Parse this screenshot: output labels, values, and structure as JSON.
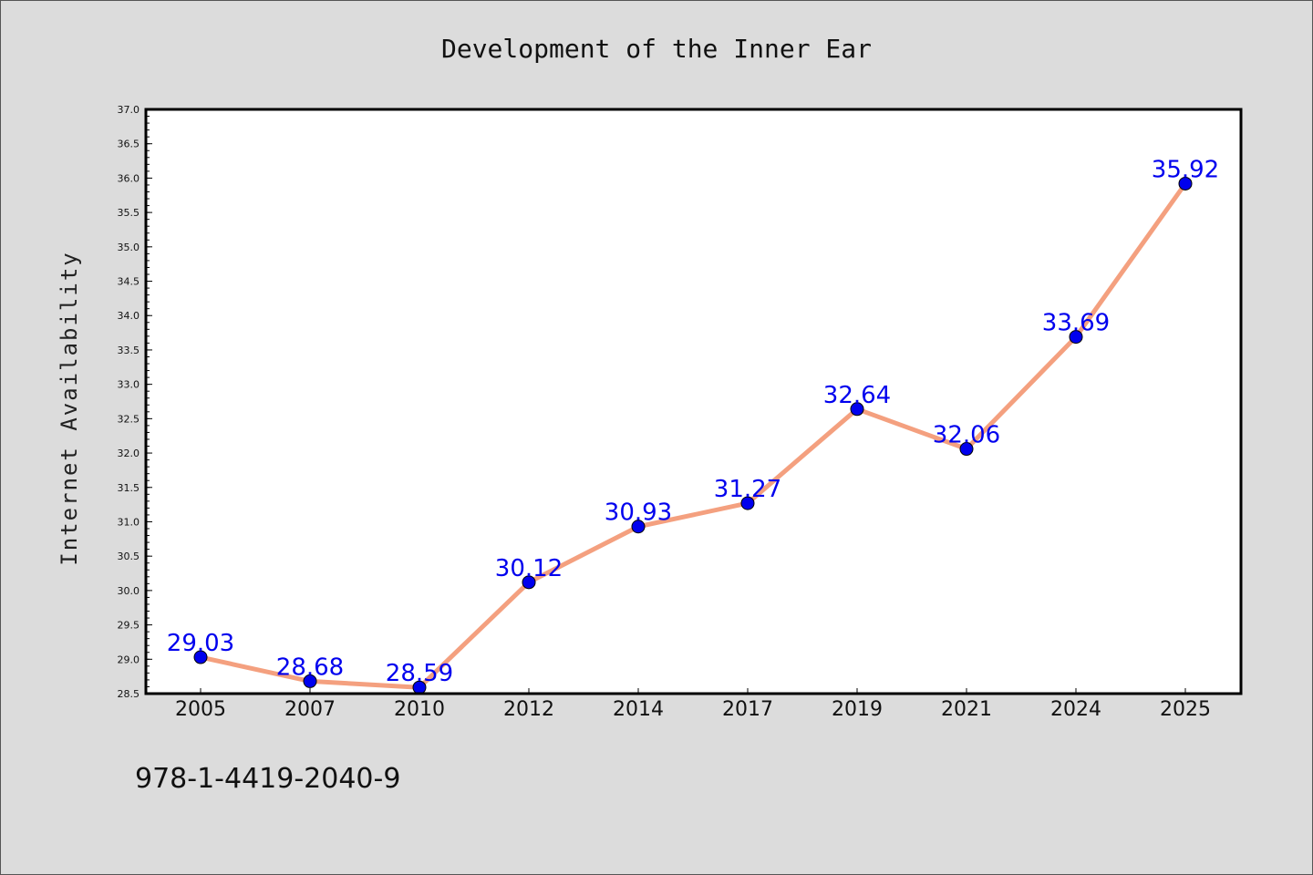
{
  "chart_data": {
    "type": "line",
    "title": "Development of the Inner Ear",
    "xlabel": "",
    "ylabel": "Internet Availability",
    "categories": [
      "2005",
      "2007",
      "2010",
      "2012",
      "2014",
      "2017",
      "2019",
      "2021",
      "2024",
      "2025"
    ],
    "series": [
      {
        "values": [
          29.03,
          28.68,
          28.59,
          30.12,
          30.93,
          31.27,
          32.64,
          32.06,
          33.69,
          35.92
        ],
        "data_labels": [
          "29.03",
          "28.68",
          "28.59",
          "30.12",
          "30.93",
          "31.27",
          "32.64",
          "32.06",
          "33.69",
          "35.92"
        ]
      }
    ],
    "ylim": [
      28.5,
      37.0
    ],
    "yticks": [
      "28.5",
      "29.0",
      "29.5",
      "30.0",
      "30.5",
      "31.0",
      "31.5",
      "32.0",
      "32.5",
      "33.0",
      "33.5",
      "34.0",
      "34.5",
      "35.0",
      "35.5",
      "36.0",
      "36.5",
      "37.0"
    ],
    "grid": false,
    "legend": "none",
    "colors": {
      "line": "#f4a07f",
      "marker": "#0000ee",
      "data_label": "#0000ee",
      "background": "#dcdcdc",
      "plot_background": "#ffffff"
    }
  },
  "footnote": "978-1-4419-2040-9"
}
